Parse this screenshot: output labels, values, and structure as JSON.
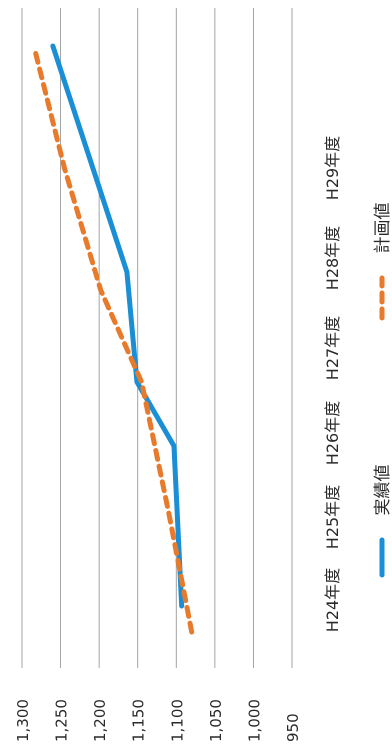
{
  "chart_data": {
    "type": "line",
    "categories": [
      "H24年度",
      "H25年度",
      "H26年度",
      "H27年度",
      "H28年度",
      "H29年度"
    ],
    "series": [
      {
        "name": "実績値",
        "values": [
          1093,
          1103,
          1151,
          1164,
          null,
          1260
        ],
        "color": "#1a8fd6",
        "style": "solid"
      },
      {
        "name": "計画値",
        "values": [
          1080,
          1110,
          1145,
          1198,
          1245,
          1284
        ],
        "color": "#e87a2c",
        "style": "dashed"
      }
    ],
    "y_ticks": [
      "1,300",
      "1,250",
      "1,200",
      "1,150",
      "1,100",
      "1,050",
      "1,000",
      "950"
    ],
    "ylim": [
      950,
      1300
    ],
    "grid": true,
    "legend_position": "bottom",
    "orientation": "rotated 90° clockwise"
  }
}
